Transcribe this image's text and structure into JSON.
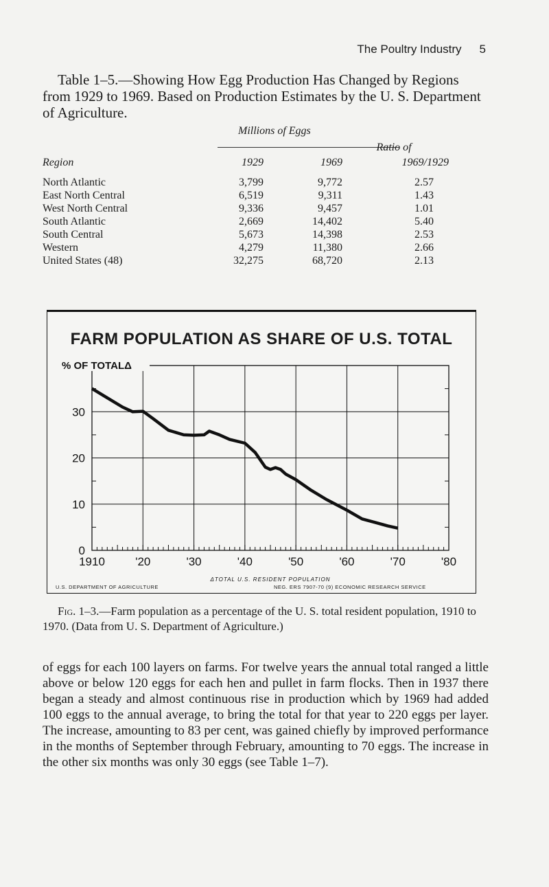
{
  "running_head": {
    "title": "The Poultry Industry",
    "page": "5"
  },
  "table": {
    "caption": "Table 1–5.—Showing How Egg Production Has Changed by Regions from 1929 to 1969. Based on Production Estimates by the U. S. Department of Agriculture.",
    "unit_header": "Millions of Eggs",
    "col_region": "Region",
    "col_1929": "1929",
    "col_1969": "1969",
    "col_ratio_1": "Ratio of",
    "col_ratio_2": "1969/1929",
    "rows": [
      {
        "region": "North Atlantic",
        "y1929": "3,799",
        "y1969": "9,772",
        "ratio": "2.57"
      },
      {
        "region": "East North Central",
        "y1929": "6,519",
        "y1969": "9,311",
        "ratio": "1.43"
      },
      {
        "region": "West North Central",
        "y1929": "9,336",
        "y1969": "9,457",
        "ratio": "1.01"
      },
      {
        "region": "South Atlantic",
        "y1929": "2,669",
        "y1969": "14,402",
        "ratio": "5.40"
      },
      {
        "region": "South Central",
        "y1929": "5,673",
        "y1969": "14,398",
        "ratio": "2.53"
      },
      {
        "region": "Western",
        "y1929": "4,279",
        "y1969": "11,380",
        "ratio": "2.66"
      },
      {
        "region": "United States (48)",
        "y1929": "32,275",
        "y1969": "68,720",
        "ratio": "2.13"
      }
    ]
  },
  "figure": {
    "title": "FARM POPULATION AS SHARE OF U.S. TOTAL",
    "footnote": "ΔTOTAL U.S. RESIDENT POPULATION",
    "source_left": "U.S. DEPARTMENT OF AGRICULTURE",
    "source_right": "NEG. ERS 7907-70 (9)   ECONOMIC RESEARCH SERVICE",
    "caption_label": "Fig. 1–3.",
    "caption_text": "—Farm population as a percentage of the U. S. total resident population, 1910 to 1970. (Data from U. S. Department of Agriculture.)"
  },
  "chart_data": {
    "type": "line",
    "title": "FARM POPULATION AS SHARE OF U.S. TOTAL",
    "ylabel": "% OF TOTALΔ",
    "xlabel": "",
    "x_tick_labels": [
      "1910",
      "'20",
      "'30",
      "'40",
      "'50",
      "'60",
      "'70",
      "'80"
    ],
    "y_tick_labels": [
      "0",
      "10",
      "20",
      "30"
    ],
    "xlim": [
      1910,
      1980
    ],
    "ylim": [
      0,
      40
    ],
    "grid": true,
    "series": [
      {
        "x": [
          1910,
          1913,
          1916,
          1918,
          1920,
          1922,
          1925,
          1928,
          1930,
          1932,
          1933,
          1935,
          1937,
          1940,
          1942,
          1944,
          1945,
          1946,
          1947,
          1948,
          1950,
          1953,
          1956,
          1960,
          1963,
          1966,
          1968,
          1970
        ],
        "y": [
          35,
          33,
          31,
          30,
          30.1,
          28.5,
          26,
          25,
          24.9,
          25,
          25.8,
          25,
          24,
          23.2,
          21.2,
          18,
          17.5,
          17.9,
          17.5,
          16.5,
          15.3,
          13,
          11,
          8.7,
          6.8,
          5.9,
          5.3,
          4.8
        ]
      }
    ]
  },
  "body_text": "of eggs for each 100 layers on farms. For twelve years the annual total ranged a little above or below 120 eggs for each hen and pullet in farm flocks. Then in 1937 there began a steady and almost continuous rise in production which by 1969 had added 100 eggs to the annual average, to bring the total for that year to 220 eggs per layer. The increase, amounting to 83 per cent, was gained chiefly by improved performance in the months of September through February, amounting to 70 eggs. The increase in the other six months was only 30 eggs (see Table 1–7)."
}
